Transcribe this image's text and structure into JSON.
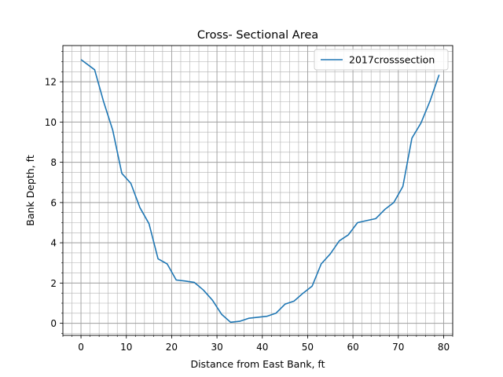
{
  "chart_data": {
    "type": "line",
    "title": "Cross- Sectional Area",
    "xlabel": "Distance from East Bank, ft",
    "ylabel": "Bank Depth, ft",
    "xlim": [
      -4,
      82
    ],
    "ylim": [
      -0.6,
      13.8
    ],
    "xticks": [
      0,
      10,
      20,
      30,
      40,
      50,
      60,
      70,
      80
    ],
    "yticks": [
      0,
      2,
      4,
      6,
      8,
      10,
      12
    ],
    "xminor_step": 2,
    "yminor_step": 0.5,
    "grid": "major and minor",
    "legend_position": "top-right",
    "series": [
      {
        "name": "2017crosssection",
        "color": "#1f77b4",
        "x": [
          0,
          3,
          5,
          7,
          9,
          11,
          13,
          15,
          17,
          19,
          21,
          23,
          25,
          27,
          29,
          31,
          33,
          35,
          37,
          39,
          41,
          43,
          45,
          47,
          49,
          51,
          53,
          55,
          57,
          59,
          61,
          63,
          65,
          67,
          69,
          71,
          73,
          75,
          77,
          79
        ],
        "y": [
          13.1,
          12.6,
          11.0,
          9.6,
          7.45,
          6.95,
          5.75,
          4.95,
          3.2,
          2.95,
          2.15,
          2.1,
          2.03,
          1.65,
          1.15,
          0.45,
          0.05,
          0.1,
          0.25,
          0.3,
          0.35,
          0.5,
          0.95,
          1.1,
          1.5,
          1.85,
          2.95,
          3.45,
          4.1,
          4.4,
          5.0,
          5.1,
          5.2,
          5.65,
          6.0,
          6.8,
          9.2,
          9.95,
          11.05,
          12.35
        ]
      }
    ]
  }
}
